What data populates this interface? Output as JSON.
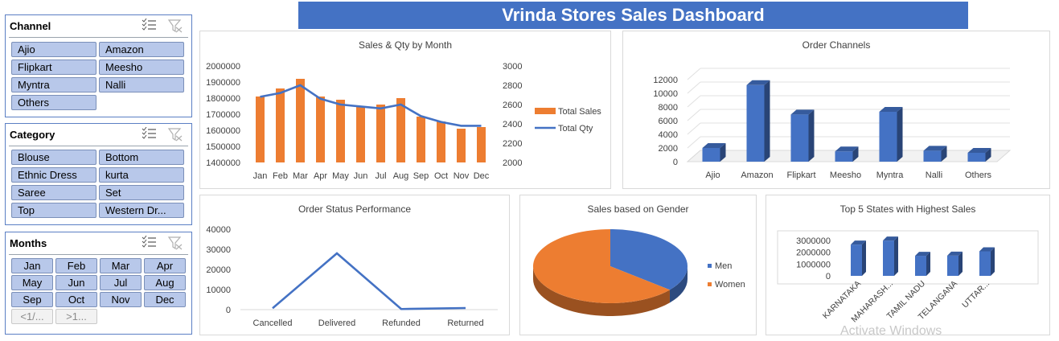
{
  "dashboard": {
    "title": "Vrinda Stores Sales Dashboard"
  },
  "slicers": {
    "channel": {
      "title": "Channel",
      "items": [
        {
          "label": "Ajio",
          "active": true
        },
        {
          "label": "Amazon",
          "active": true
        },
        {
          "label": "Flipkart",
          "active": true
        },
        {
          "label": "Meesho",
          "active": true
        },
        {
          "label": "Myntra",
          "active": true
        },
        {
          "label": "Nalli",
          "active": true
        },
        {
          "label": "Others",
          "active": true
        }
      ]
    },
    "category": {
      "title": "Category",
      "items": [
        {
          "label": "Blouse",
          "active": true
        },
        {
          "label": "Bottom",
          "active": true
        },
        {
          "label": "Ethnic Dress",
          "active": true
        },
        {
          "label": "kurta",
          "active": true
        },
        {
          "label": "Saree",
          "active": true
        },
        {
          "label": "Set",
          "active": true
        },
        {
          "label": "Top",
          "active": true
        },
        {
          "label": "Western Dr...",
          "active": true
        }
      ]
    },
    "months": {
      "title": "Months",
      "items": [
        {
          "label": "Jan",
          "active": true
        },
        {
          "label": "Feb",
          "active": true
        },
        {
          "label": "Mar",
          "active": true
        },
        {
          "label": "Apr",
          "active": true
        },
        {
          "label": "May",
          "active": true
        },
        {
          "label": "Jun",
          "active": true
        },
        {
          "label": "Jul",
          "active": true
        },
        {
          "label": "Aug",
          "active": true
        },
        {
          "label": "Sep",
          "active": true
        },
        {
          "label": "Oct",
          "active": true
        },
        {
          "label": "Nov",
          "active": true
        },
        {
          "label": "Dec",
          "active": true
        },
        {
          "label": "<1/...",
          "active": false
        },
        {
          "label": ">1...",
          "active": false
        }
      ]
    }
  },
  "chart_data": [
    {
      "id": "sales-qty",
      "type": "bar",
      "title": "Sales & Qty by Month",
      "categories": [
        "Jan",
        "Feb",
        "Mar",
        "Apr",
        "May",
        "Jun",
        "Jul",
        "Aug",
        "Sep",
        "Oct",
        "Nov",
        "Dec"
      ],
      "series": [
        {
          "name": "Total Sales",
          "type": "bar",
          "axis": "left",
          "color": "#ed7d31",
          "values": [
            1810000,
            1860000,
            1920000,
            1810000,
            1790000,
            1745000,
            1760000,
            1800000,
            1685000,
            1655000,
            1610000,
            1620000
          ]
        },
        {
          "name": "Total Qty",
          "type": "line",
          "axis": "right",
          "color": "#4472c4",
          "values": [
            2680,
            2720,
            2800,
            2660,
            2600,
            2580,
            2560,
            2600,
            2480,
            2420,
            2380,
            2380
          ]
        }
      ],
      "y_left": {
        "min": 1400000,
        "max": 2000000,
        "ticks": [
          "2000000",
          "1900000",
          "1800000",
          "1700000",
          "1600000",
          "1500000",
          "1400000"
        ]
      },
      "y_right": {
        "min": 2000,
        "max": 3000,
        "ticks": [
          "3000",
          "2800",
          "2600",
          "2400",
          "2200",
          "2000"
        ]
      },
      "legend": "right"
    },
    {
      "id": "order-channels",
      "type": "bar",
      "title": "Order Channels",
      "categories": [
        "Ajio",
        "Amazon",
        "Flipkart",
        "Meesho",
        "Myntra",
        "Nalli",
        "Others"
      ],
      "values": [
        2000,
        11200,
        6900,
        1500,
        7300,
        1600,
        1300
      ],
      "color": "#4472c4",
      "ylim": [
        0,
        12000
      ],
      "ticks": [
        "12000",
        "10000",
        "8000",
        "6000",
        "4000",
        "2000",
        "0"
      ],
      "style": "3d"
    },
    {
      "id": "order-status",
      "type": "line",
      "title": "Order Status Performance",
      "categories": [
        "Cancelled",
        "Delivered",
        "Refunded",
        "Returned"
      ],
      "values": [
        700,
        28000,
        300,
        800
      ],
      "color": "#4472c4",
      "ylim": [
        0,
        40000
      ],
      "ticks": [
        "40000",
        "30000",
        "20000",
        "10000",
        "0"
      ]
    },
    {
      "id": "gender",
      "type": "pie",
      "title": "Sales based on Gender",
      "labels": [
        "Men",
        "Women"
      ],
      "values": [
        36,
        64
      ],
      "colors": [
        "#4472c4",
        "#ed7d31"
      ],
      "legend": "right",
      "style": "3d"
    },
    {
      "id": "top-states",
      "type": "bar",
      "title": "Top 5 States with Highest Sales",
      "categories": [
        "KARNATAKA",
        "MAHARASH...",
        "TAMIL NADU",
        "TELANGANA",
        "UTTAR..."
      ],
      "values": [
        2650000,
        2990000,
        1700000,
        1710000,
        2080000
      ],
      "color": "#4472c4",
      "ylim": [
        0,
        3000000
      ],
      "ticks": [
        "3000000",
        "2000000",
        "1000000",
        "0"
      ],
      "style": "3d"
    }
  ],
  "watermark": "Activate Windows"
}
